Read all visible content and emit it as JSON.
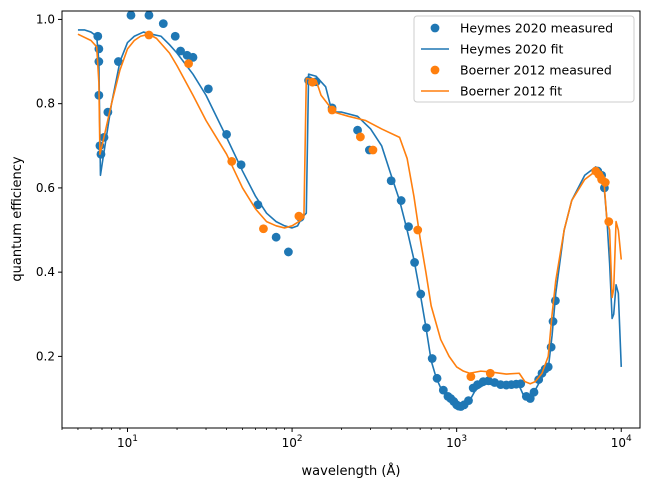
{
  "chart_data": {
    "type": "scatter",
    "xscale": "log",
    "yscale": "linear",
    "xlim": [
      4,
      13000
    ],
    "ylim": [
      0.03,
      1.02
    ],
    "xlabel": "wavelength (Å)",
    "ylabel": "quantum efficiency",
    "grid": false,
    "legend_position": "top-right",
    "x_ticks": [
      {
        "value": 10,
        "base": "10",
        "exp": "1"
      },
      {
        "value": 100,
        "base": "10",
        "exp": "2"
      },
      {
        "value": 1000,
        "base": "10",
        "exp": "3"
      },
      {
        "value": 10000,
        "base": "10",
        "exp": "4"
      }
    ],
    "y_ticks": [
      {
        "value": 0.2,
        "label": "0.2"
      },
      {
        "value": 0.4,
        "label": "0.4"
      },
      {
        "value": 0.6,
        "label": "0.6"
      },
      {
        "value": 0.8,
        "label": "0.8"
      },
      {
        "value": 1.0,
        "label": "1.0"
      }
    ],
    "series": [
      {
        "name": "Heymes 2020 measured",
        "kind": "scatter",
        "color": "#1f77b4",
        "points": [
          [
            6.6,
            0.96
          ],
          [
            6.7,
            0.93
          ],
          [
            6.7,
            0.9
          ],
          [
            6.7,
            0.82
          ],
          [
            6.8,
            0.7
          ],
          [
            6.9,
            0.68
          ],
          [
            7.2,
            0.72
          ],
          [
            7.6,
            0.78
          ],
          [
            8.8,
            0.9
          ],
          [
            10.5,
            1.01
          ],
          [
            13.5,
            1.01
          ],
          [
            16.5,
            0.99
          ],
          [
            19.5,
            0.96
          ],
          [
            21,
            0.925
          ],
          [
            23,
            0.915
          ],
          [
            25,
            0.91
          ],
          [
            31,
            0.835
          ],
          [
            40,
            0.727
          ],
          [
            49,
            0.655
          ],
          [
            62,
            0.56
          ],
          [
            80,
            0.483
          ],
          [
            95,
            0.448
          ],
          [
            112,
            0.53
          ],
          [
            126,
            0.855
          ],
          [
            140,
            0.852
          ],
          [
            175,
            0.79
          ],
          [
            250,
            0.737
          ],
          [
            295,
            0.69
          ],
          [
            400,
            0.617
          ],
          [
            460,
            0.57
          ],
          [
            510,
            0.508
          ],
          [
            555,
            0.423
          ],
          [
            605,
            0.348
          ],
          [
            655,
            0.268
          ],
          [
            710,
            0.195
          ],
          [
            760,
            0.148
          ],
          [
            830,
            0.12
          ],
          [
            885,
            0.105
          ],
          [
            920,
            0.1
          ],
          [
            960,
            0.093
          ],
          [
            1000,
            0.085
          ],
          [
            1030,
            0.082
          ],
          [
            1060,
            0.081
          ],
          [
            1110,
            0.085
          ],
          [
            1180,
            0.095
          ],
          [
            1260,
            0.125
          ],
          [
            1340,
            0.133
          ],
          [
            1450,
            0.14
          ],
          [
            1560,
            0.142
          ],
          [
            1700,
            0.138
          ],
          [
            1850,
            0.133
          ],
          [
            2000,
            0.132
          ],
          [
            2150,
            0.133
          ],
          [
            2300,
            0.134
          ],
          [
            2450,
            0.135
          ],
          [
            2650,
            0.105
          ],
          [
            2800,
            0.1
          ],
          [
            2950,
            0.115
          ],
          [
            3150,
            0.145
          ],
          [
            3300,
            0.16
          ],
          [
            3450,
            0.17
          ],
          [
            3600,
            0.175
          ],
          [
            3750,
            0.222
          ],
          [
            3850,
            0.283
          ],
          [
            3980,
            0.332
          ],
          [
            7200,
            0.64
          ],
          [
            7600,
            0.63
          ],
          [
            7900,
            0.6
          ]
        ]
      },
      {
        "name": "Heymes 2020 fit",
        "kind": "line",
        "color": "#1f77b4",
        "points": [
          [
            5,
            0.975
          ],
          [
            5.5,
            0.975
          ],
          [
            6,
            0.97
          ],
          [
            6.5,
            0.96
          ],
          [
            6.7,
            0.9
          ],
          [
            6.85,
            0.63
          ],
          [
            7.1,
            0.67
          ],
          [
            8,
            0.8
          ],
          [
            9,
            0.9
          ],
          [
            10,
            0.945
          ],
          [
            11,
            0.96
          ],
          [
            12.5,
            0.97
          ],
          [
            14,
            0.965
          ],
          [
            16,
            0.96
          ],
          [
            18,
            0.94
          ],
          [
            20,
            0.92
          ],
          [
            25,
            0.87
          ],
          [
            30,
            0.82
          ],
          [
            40,
            0.72
          ],
          [
            50,
            0.64
          ],
          [
            60,
            0.58
          ],
          [
            70,
            0.54
          ],
          [
            80,
            0.52
          ],
          [
            90,
            0.51
          ],
          [
            100,
            0.505
          ],
          [
            108,
            0.51
          ],
          [
            115,
            0.53
          ],
          [
            122,
            0.54
          ],
          [
            126,
            0.87
          ],
          [
            140,
            0.865
          ],
          [
            160,
            0.84
          ],
          [
            175,
            0.78
          ],
          [
            200,
            0.78
          ],
          [
            250,
            0.77
          ],
          [
            300,
            0.74
          ],
          [
            350,
            0.7
          ],
          [
            400,
            0.63
          ],
          [
            450,
            0.57
          ],
          [
            500,
            0.5
          ],
          [
            550,
            0.43
          ],
          [
            600,
            0.35
          ],
          [
            650,
            0.27
          ],
          [
            700,
            0.19
          ],
          [
            750,
            0.15
          ],
          [
            800,
            0.125
          ],
          [
            900,
            0.1
          ],
          [
            1000,
            0.085
          ],
          [
            1100,
            0.087
          ],
          [
            1200,
            0.095
          ],
          [
            1300,
            0.12
          ],
          [
            1500,
            0.135
          ],
          [
            2000,
            0.13
          ],
          [
            2400,
            0.13
          ],
          [
            2600,
            0.1
          ],
          [
            2800,
            0.095
          ],
          [
            3000,
            0.12
          ],
          [
            3300,
            0.15
          ],
          [
            3600,
            0.17
          ],
          [
            3800,
            0.25
          ],
          [
            4000,
            0.35
          ],
          [
            4500,
            0.5
          ],
          [
            5000,
            0.57
          ],
          [
            6000,
            0.63
          ],
          [
            7000,
            0.65
          ],
          [
            7800,
            0.62
          ],
          [
            8200,
            0.52
          ],
          [
            8500,
            0.42
          ],
          [
            8800,
            0.29
          ],
          [
            9000,
            0.3
          ],
          [
            9300,
            0.37
          ],
          [
            9600,
            0.35
          ],
          [
            10000,
            0.175
          ]
        ]
      },
      {
        "name": "Boerner 2012 measured",
        "kind": "scatter",
        "color": "#ff7f0e",
        "points": [
          [
            13.5,
            0.963
          ],
          [
            23.5,
            0.895
          ],
          [
            43,
            0.663
          ],
          [
            67,
            0.503
          ],
          [
            110,
            0.533
          ],
          [
            133,
            0.851
          ],
          [
            175,
            0.785
          ],
          [
            260,
            0.721
          ],
          [
            310,
            0.69
          ],
          [
            580,
            0.5
          ],
          [
            1220,
            0.152
          ],
          [
            1600,
            0.16
          ],
          [
            7000,
            0.64
          ],
          [
            7300,
            0.632
          ],
          [
            7600,
            0.62
          ],
          [
            8000,
            0.613
          ],
          [
            8400,
            0.52
          ]
        ]
      },
      {
        "name": "Boerner 2012 fit",
        "kind": "line",
        "color": "#ff7f0e",
        "points": [
          [
            5,
            0.965
          ],
          [
            6,
            0.95
          ],
          [
            6.5,
            0.935
          ],
          [
            6.7,
            0.85
          ],
          [
            6.8,
            0.68
          ],
          [
            7,
            0.7
          ],
          [
            8,
            0.8
          ],
          [
            9,
            0.88
          ],
          [
            10,
            0.93
          ],
          [
            11,
            0.95
          ],
          [
            12,
            0.96
          ],
          [
            13.5,
            0.965
          ],
          [
            15,
            0.955
          ],
          [
            18,
            0.92
          ],
          [
            20,
            0.89
          ],
          [
            25,
            0.82
          ],
          [
            30,
            0.76
          ],
          [
            40,
            0.68
          ],
          [
            50,
            0.6
          ],
          [
            60,
            0.55
          ],
          [
            70,
            0.52
          ],
          [
            80,
            0.51
          ],
          [
            90,
            0.505
          ],
          [
            100,
            0.51
          ],
          [
            110,
            0.52
          ],
          [
            118,
            0.53
          ],
          [
            122,
            0.86
          ],
          [
            140,
            0.855
          ],
          [
            150,
            0.82
          ],
          [
            180,
            0.78
          ],
          [
            220,
            0.77
          ],
          [
            280,
            0.76
          ],
          [
            350,
            0.74
          ],
          [
            450,
            0.72
          ],
          [
            500,
            0.67
          ],
          [
            550,
            0.58
          ],
          [
            600,
            0.48
          ],
          [
            650,
            0.4
          ],
          [
            700,
            0.32
          ],
          [
            800,
            0.24
          ],
          [
            900,
            0.2
          ],
          [
            1000,
            0.175
          ],
          [
            1100,
            0.165
          ],
          [
            1200,
            0.16
          ],
          [
            1400,
            0.165
          ],
          [
            1600,
            0.163
          ],
          [
            2000,
            0.158
          ],
          [
            2400,
            0.16
          ],
          [
            2600,
            0.14
          ],
          [
            2800,
            0.135
          ],
          [
            3000,
            0.14
          ],
          [
            3300,
            0.16
          ],
          [
            3600,
            0.2
          ],
          [
            3800,
            0.3
          ],
          [
            4000,
            0.38
          ],
          [
            4500,
            0.5
          ],
          [
            5000,
            0.57
          ],
          [
            6000,
            0.62
          ],
          [
            7000,
            0.64
          ],
          [
            7800,
            0.63
          ],
          [
            8200,
            0.52
          ],
          [
            8500,
            0.5
          ],
          [
            8800,
            0.34
          ],
          [
            9000,
            0.36
          ],
          [
            9300,
            0.52
          ],
          [
            9600,
            0.5
          ],
          [
            10000,
            0.43
          ]
        ]
      }
    ]
  }
}
